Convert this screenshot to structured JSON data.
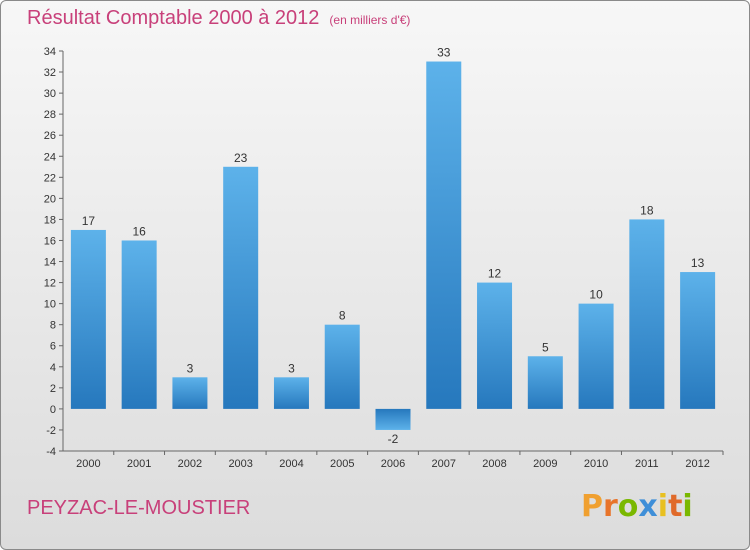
{
  "header": {
    "title": "Résultat Comptable 2000 à 2012",
    "unit": "(en milliers d'€)"
  },
  "footer": {
    "commune": "PEYZAC-LE-MOUSTIER",
    "logo_text": "Proxiti"
  },
  "colors": {
    "accent": "#c8407a",
    "bar_light": "#5aaee8",
    "bar_dark": "#2a7fc4"
  },
  "chart_data": {
    "type": "bar",
    "title": "Résultat Comptable 2000 à 2012",
    "ylabel": "(en milliers d'€)",
    "xlabel": "",
    "categories": [
      "2000",
      "2001",
      "2002",
      "2003",
      "2004",
      "2005",
      "2006",
      "2007",
      "2008",
      "2009",
      "2010",
      "2011",
      "2012"
    ],
    "values": [
      17,
      16,
      3,
      23,
      3,
      8,
      -2,
      33,
      12,
      5,
      10,
      18,
      13
    ],
    "ylim": [
      -4,
      34
    ],
    "yticks": [
      -4,
      -2,
      0,
      2,
      4,
      6,
      8,
      10,
      12,
      14,
      16,
      18,
      20,
      22,
      24,
      26,
      28,
      30,
      32,
      34
    ],
    "grid": false
  }
}
